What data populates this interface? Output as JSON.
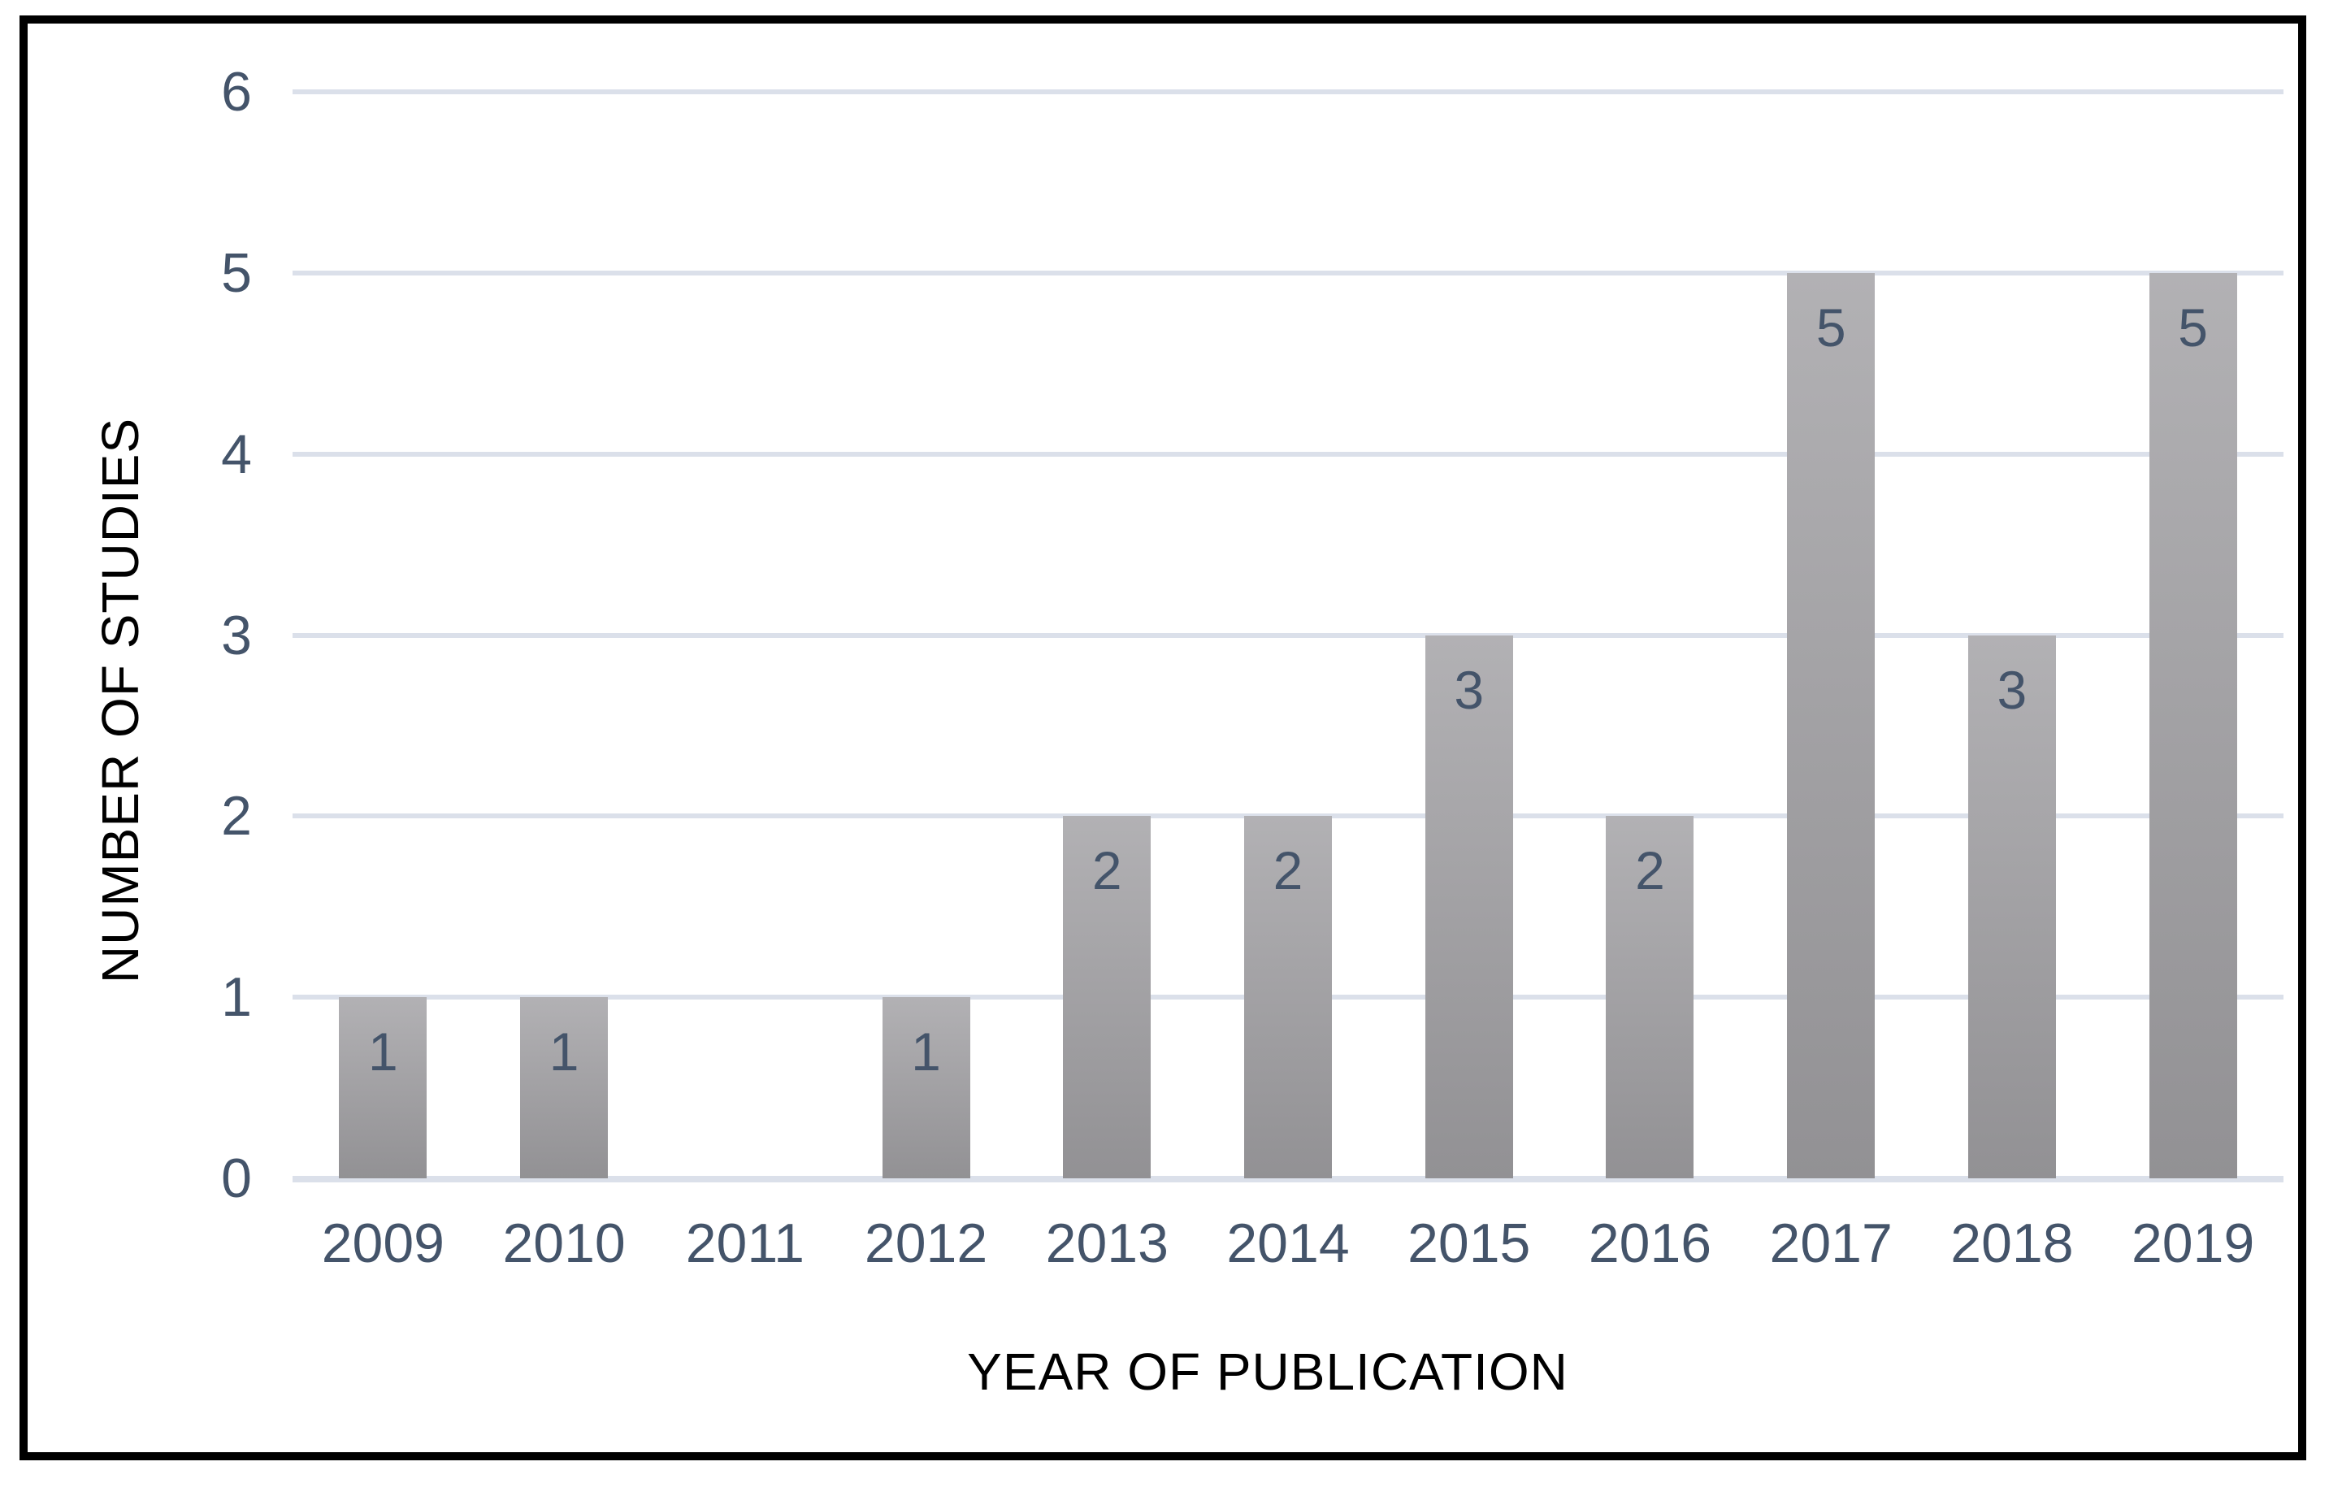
{
  "chart_data": {
    "type": "bar",
    "title": "",
    "categories": [
      "2009",
      "2010",
      "2011",
      "2012",
      "2013",
      "2014",
      "2015",
      "2016",
      "2017",
      "2018",
      "2019"
    ],
    "values": [
      1,
      1,
      0,
      1,
      2,
      2,
      3,
      2,
      5,
      3,
      5
    ],
    "data_labels": [
      "1",
      "1",
      "",
      "1",
      "2",
      "2",
      "3",
      "2",
      "5",
      "3",
      "5"
    ],
    "xlabel": "YEAR OF PUBLICATION",
    "ylabel": "NUMBER OF STUDIES",
    "y_ticks": [
      "0",
      "1",
      "2",
      "3",
      "4",
      "5",
      "6"
    ],
    "ylim": [
      0,
      6
    ],
    "grid": "horizontal",
    "legend": "none",
    "data_label_position": "inside-end",
    "colors": {
      "bar_top": "#b2b1b4",
      "bar_bottom": "#929194",
      "data_label": "#44546a",
      "tick_label": "#44546a",
      "gridline": "#dbe0ea",
      "axis_title": "#000000",
      "frame_border": "#000000",
      "background": "#ffffff"
    }
  }
}
